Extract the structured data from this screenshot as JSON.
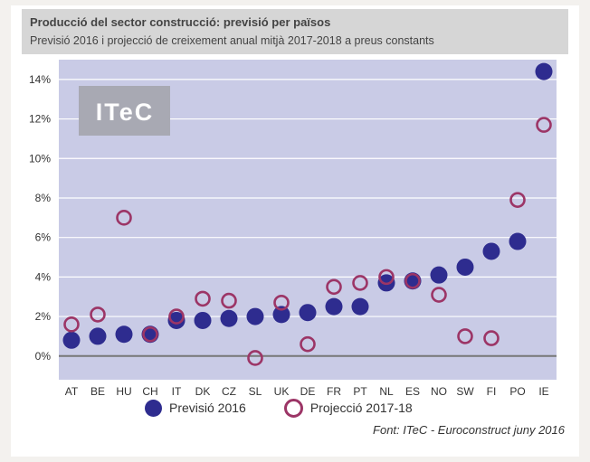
{
  "header": {
    "title": "Producció del sector construcció: previsió per països",
    "subtitle": "Previsió 2016 i projecció de creixement anual mitjà 2017-2018 a preus constants"
  },
  "logo": {
    "text": "ITeC"
  },
  "source": "Font: ITeC - Euroconstruct juny 2016",
  "colors": {
    "plot_bg": "#c9cbe6",
    "gridline": "#ffffff",
    "zero_line": "#777777",
    "series_2016": "#2e2c8f",
    "series_proj": "#9c3566",
    "logo_bg": "#a8a9b3"
  },
  "chart_data": {
    "type": "scatter",
    "title": "Producció del sector construcció: previsió per països",
    "categories": [
      "AT",
      "BE",
      "HU",
      "CH",
      "IT",
      "DK",
      "CZ",
      "SL",
      "UK",
      "DE",
      "FR",
      "PT",
      "NL",
      "ES",
      "NO",
      "SW",
      "FI",
      "PO",
      "IE"
    ],
    "yticks": [
      "0%",
      "2%",
      "4%",
      "6%",
      "8%",
      "10%",
      "12%",
      "14%"
    ],
    "ylim": [
      -1.2,
      15.0
    ],
    "grid": true,
    "legend_position": "bottom",
    "series": [
      {
        "name": "Previsió 2016",
        "marker": "filled",
        "values": [
          0.8,
          1.0,
          1.1,
          1.1,
          1.8,
          1.8,
          1.9,
          2.0,
          2.1,
          2.2,
          2.5,
          2.5,
          3.7,
          3.8,
          4.1,
          4.5,
          5.3,
          5.8,
          14.4
        ]
      },
      {
        "name": "Projecció 2017-18",
        "marker": "ring",
        "values": [
          1.6,
          2.1,
          7.0,
          1.1,
          2.0,
          2.9,
          2.8,
          -0.1,
          2.7,
          0.6,
          3.5,
          3.7,
          4.0,
          3.8,
          3.1,
          1.0,
          0.9,
          7.9,
          11.7
        ]
      }
    ]
  }
}
